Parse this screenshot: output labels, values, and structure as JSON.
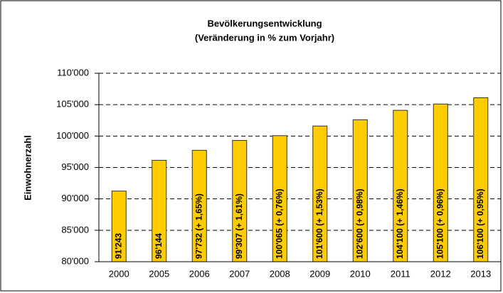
{
  "chart_data": {
    "type": "bar",
    "title": "Bevölkerungsentwicklung",
    "subtitle": "(Veränderung in % zum Vorjahr)",
    "y_label": "Einwohnerzahl",
    "categories": [
      "2000",
      "2005",
      "2006",
      "2007",
      "2008",
      "2009",
      "2010",
      "2011",
      "2012",
      "2013"
    ],
    "values": [
      91243,
      96144,
      97732,
      99307,
      100065,
      101600,
      102600,
      104100,
      105100,
      106100
    ],
    "value_labels": [
      "91'243",
      "96'144",
      "97'732 (+ 1,65%)",
      "99'307 (+ 1,61%)",
      "100'065 (+ 0,76%)",
      "101'600 (+ 1,53%)",
      "102'600 (+ 0,98%)",
      "104'100 (+ 1,46%)",
      "105'100 (+ 0,96%)",
      "106'100 (+ 0,95%)"
    ],
    "color": "#ffcc00",
    "ylim": [
      80000,
      110000
    ],
    "yticks": [
      {
        "value": 80000,
        "label": "80'000"
      },
      {
        "value": 85000,
        "label": "85'000"
      },
      {
        "value": 90000,
        "label": "90'000"
      },
      {
        "value": 95000,
        "label": "95'000"
      },
      {
        "value": 100000,
        "label": "100'000"
      },
      {
        "value": 105000,
        "label": "105'000"
      },
      {
        "value": 110000,
        "label": "110'000"
      }
    ],
    "grid": true
  }
}
